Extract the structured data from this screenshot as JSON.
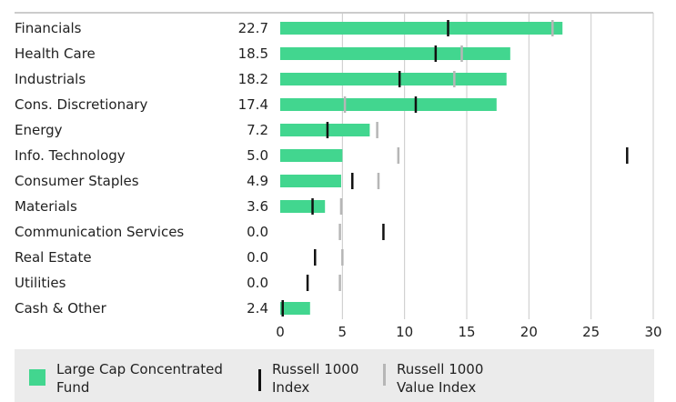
{
  "chart_data": {
    "type": "bar",
    "orientation": "horizontal",
    "title": "",
    "xlabel": "",
    "ylabel": "",
    "categories": [
      "Financials",
      "Health Care",
      "Industrials",
      "Cons. Discretionary",
      "Energy",
      "Info. Technology",
      "Consumer Staples",
      "Materials",
      "Communication Services",
      "Real Estate",
      "Utilities",
      "Cash & Other"
    ],
    "value_labels": [
      "22.7",
      "18.5",
      "18.2",
      "17.4",
      "7.2",
      "5.0",
      "4.9",
      "3.6",
      "0.0",
      "0.0",
      "0.0",
      "2.4"
    ],
    "series": [
      {
        "name": "Large Cap Concentrated Fund",
        "kind": "bar",
        "color": "#42d68f",
        "values": [
          22.7,
          18.5,
          18.2,
          17.4,
          7.2,
          5.0,
          4.9,
          3.6,
          0.0,
          0.0,
          0.0,
          2.4
        ]
      },
      {
        "name": "Russell 1000 Index",
        "kind": "marker",
        "color": "#111111",
        "values": [
          13.5,
          12.5,
          9.6,
          10.9,
          3.8,
          27.9,
          5.8,
          2.6,
          8.3,
          2.8,
          2.2,
          0.2
        ]
      },
      {
        "name": "Russell 1000 Value Index",
        "kind": "marker",
        "color": "#b6b6b6",
        "values": [
          21.9,
          14.6,
          14.0,
          5.2,
          7.8,
          9.5,
          7.9,
          4.9,
          4.8,
          5.0,
          4.8,
          0.2
        ]
      }
    ],
    "xticks": [
      0,
      5,
      10,
      15,
      20,
      25,
      30
    ],
    "xlim": [
      0,
      30
    ],
    "grid": true,
    "legend": {
      "position": "bottom",
      "labels": [
        "Large Cap Concentrated\nFund",
        "Russell 1000\nIndex",
        "Russell 1000\nValue Index"
      ]
    }
  }
}
